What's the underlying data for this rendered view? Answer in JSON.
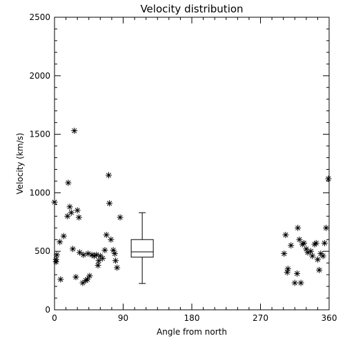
{
  "chart_data": {
    "type": "scatter",
    "title": "Velocity distribution",
    "xlabel": "Angle from north",
    "ylabel": "Velocity (km/s)",
    "xlim": [
      0,
      360
    ],
    "ylim": [
      0,
      2500
    ],
    "xticks": [
      0,
      90,
      180,
      270,
      360
    ],
    "yticks": [
      0,
      500,
      1000,
      1500,
      2000,
      2500
    ],
    "xtick_labels": [
      "0",
      "90",
      "180",
      "270",
      "360"
    ],
    "ytick_labels": [
      "0",
      "500",
      "1000",
      "1500",
      "2000",
      "2500"
    ],
    "grid": false,
    "marker": "asterisk",
    "series": [
      {
        "points": [
          [
            0,
            920
          ],
          [
            2,
            430
          ],
          [
            2,
            410
          ],
          [
            3,
            470
          ],
          [
            7,
            580
          ],
          [
            8,
            260
          ],
          [
            12,
            630
          ],
          [
            17,
            800
          ],
          [
            18,
            1085
          ],
          [
            20,
            880
          ],
          [
            22,
            830
          ],
          [
            24,
            520
          ],
          [
            26,
            1530
          ],
          [
            28,
            280
          ],
          [
            30,
            850
          ],
          [
            32,
            790
          ],
          [
            33,
            490
          ],
          [
            37,
            230
          ],
          [
            38,
            470
          ],
          [
            41,
            250
          ],
          [
            43,
            260
          ],
          [
            44,
            480
          ],
          [
            46,
            290
          ],
          [
            49,
            470
          ],
          [
            52,
            460
          ],
          [
            55,
            470
          ],
          [
            57,
            380
          ],
          [
            58,
            420
          ],
          [
            60,
            460
          ],
          [
            63,
            440
          ],
          [
            66,
            510
          ],
          [
            68,
            640
          ],
          [
            71,
            1150
          ],
          [
            72,
            910
          ],
          [
            74,
            600
          ],
          [
            77,
            510
          ],
          [
            79,
            480
          ],
          [
            80,
            420
          ],
          [
            82,
            360
          ],
          [
            86,
            790
          ],
          [
            301,
            480
          ],
          [
            303,
            640
          ],
          [
            305,
            320
          ],
          [
            306,
            350
          ],
          [
            310,
            550
          ],
          [
            315,
            230
          ],
          [
            318,
            310
          ],
          [
            319,
            700
          ],
          [
            321,
            600
          ],
          [
            323,
            230
          ],
          [
            325,
            560
          ],
          [
            327,
            570
          ],
          [
            330,
            520
          ],
          [
            332,
            490
          ],
          [
            336,
            500
          ],
          [
            338,
            460
          ],
          [
            341,
            560
          ],
          [
            343,
            570
          ],
          [
            345,
            430
          ],
          [
            347,
            340
          ],
          [
            349,
            480
          ],
          [
            352,
            460
          ],
          [
            354,
            570
          ],
          [
            356,
            700
          ],
          [
            359,
            1120
          ]
        ]
      }
    ],
    "boxplot": {
      "x": 115,
      "whisker_low": 225,
      "q1": 450,
      "median": 495,
      "q3": 600,
      "whisker_high": 830
    }
  }
}
